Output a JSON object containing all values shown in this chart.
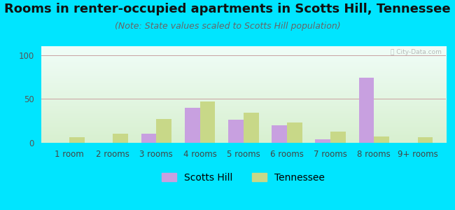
{
  "title": "Rooms in renter-occupied apartments in Scotts Hill, Tennessee",
  "subtitle": "(Note: State values scaled to Scotts Hill population)",
  "categories": [
    "1 room",
    "2 rooms",
    "3 rooms",
    "4 rooms",
    "5 rooms",
    "6 rooms",
    "7 rooms",
    "8 rooms",
    "9+ rooms"
  ],
  "scotts_hill": [
    0,
    0,
    10,
    40,
    26,
    20,
    4,
    74,
    0
  ],
  "tennessee": [
    6,
    10,
    27,
    47,
    34,
    23,
    13,
    7,
    6
  ],
  "scotts_hill_color": "#c8a0e0",
  "tennessee_color": "#c8d888",
  "background_color": "#00e5ff",
  "ylim": [
    0,
    110
  ],
  "yticks": [
    0,
    50,
    100
  ],
  "title_fontsize": 13,
  "subtitle_fontsize": 9,
  "tick_fontsize": 8.5,
  "legend_fontsize": 10,
  "bar_width": 0.35,
  "grad_top_color": "#f0fdf8",
  "grad_bottom_color": "#d8f0d0"
}
